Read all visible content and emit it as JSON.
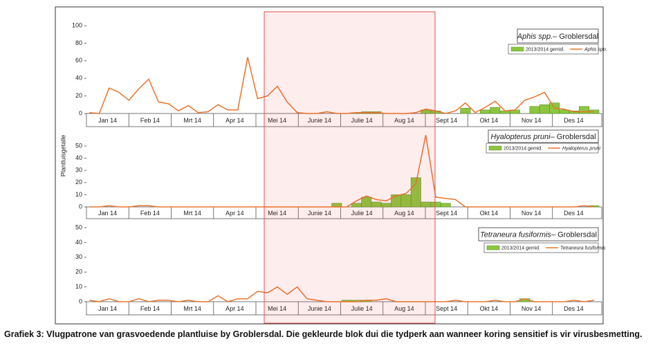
{
  "y_label": "Plantluisgetalle",
  "caption": "Grafiek 3: Vlugpatrone van grasvoedende plantluise by Groblersdal. Die gekleurde blok dui die tydperk aan wanneer koring sensitief is vir virusbesmetting.",
  "chart_data": [
    {
      "type": "combo",
      "title_species": "Aphis spp.",
      "title_place": "– Groblersdal",
      "x_labels": [
        "Jan 14",
        "Feb 14",
        "Mrt 14",
        "Apr 14",
        "Mei 14",
        "Junie 14",
        "Julie 14",
        "Aug 14",
        "Sept 14",
        "Okt 14",
        "Nov 14",
        "Des 14"
      ],
      "ylim": [
        0,
        100
      ],
      "yticks": [
        0,
        20,
        40,
        60,
        80,
        100
      ],
      "series": [
        {
          "name": "2013/2014 gemid.",
          "kind": "bar",
          "color": "#8cc63f",
          "values": [
            0,
            0,
            0,
            0,
            0,
            0,
            0,
            0,
            0,
            0,
            0,
            0,
            0,
            0,
            0,
            0,
            0,
            0,
            0,
            0,
            0,
            0,
            0,
            0,
            0,
            0,
            0,
            1,
            2,
            2,
            0,
            0,
            0,
            0,
            4,
            3,
            0,
            0,
            6,
            0,
            4,
            7,
            3,
            4,
            0,
            8,
            10,
            12,
            4,
            3,
            8,
            4
          ]
        },
        {
          "name": "Aphis spp.",
          "kind": "line",
          "color": "#e8742a",
          "values": [
            1,
            0,
            29,
            24,
            15,
            28,
            39,
            13,
            11,
            3,
            9,
            1,
            2,
            10,
            4,
            4,
            64,
            17,
            20,
            31,
            13,
            1,
            0,
            0,
            2,
            0,
            0,
            1,
            1,
            1,
            0,
            0,
            0,
            1,
            5,
            3,
            0,
            3,
            12,
            1,
            7,
            14,
            3,
            4,
            15,
            19,
            24,
            6,
            5,
            2,
            2,
            2
          ]
        }
      ]
    },
    {
      "type": "combo",
      "title_species": "Hyalopterus pruni",
      "title_place": "– Groblersdal",
      "x_labels": [
        "Jan 14",
        "Feb 14",
        "Mrt 14",
        "Apr 14",
        "Mei 14",
        "Junie 14",
        "Julie 14",
        "Aug 14",
        "Sept 14",
        "Okt 14",
        "Nov 14",
        "Des 14"
      ],
      "ylim": [
        0,
        50
      ],
      "yticks": [
        0,
        10,
        20,
        30,
        40,
        50
      ],
      "series": [
        {
          "name": "2013/2014 gemid.",
          "kind": "bar",
          "color": "#8cc63f",
          "values": [
            0,
            0,
            0,
            0,
            0,
            0,
            0,
            0,
            0,
            0,
            0,
            0,
            0,
            0,
            0,
            0,
            0,
            0,
            0,
            0,
            0,
            0,
            0,
            0,
            0,
            3,
            0,
            3,
            8,
            4,
            3,
            10,
            10,
            24,
            4,
            4,
            3,
            0,
            0,
            0,
            0,
            0,
            0,
            0,
            0,
            0,
            0,
            0,
            0,
            0,
            0,
            1
          ]
        },
        {
          "name": "Hyalopterus pruni",
          "kind": "line",
          "color": "#e8742a",
          "values": [
            0,
            0,
            1,
            0,
            0,
            1,
            1,
            0,
            0,
            0,
            0,
            0,
            0,
            0,
            0,
            0,
            0,
            0,
            0,
            0,
            0,
            0,
            0,
            0,
            0,
            0,
            0,
            5,
            9,
            6,
            5,
            9,
            11,
            19,
            59,
            8,
            7,
            6,
            0,
            0,
            0,
            0,
            0,
            0,
            0,
            0,
            0,
            0,
            0,
            0,
            1,
            0
          ]
        }
      ]
    },
    {
      "type": "combo",
      "title_species": "Tetraneura fusiformis",
      "title_place": "– Groblersdal",
      "x_labels": [
        "Jan 14",
        "Feb 14",
        "Mrt 14",
        "Apr 14",
        "Mei 14",
        "Junie 14",
        "Julie 14",
        "Aug 14",
        "Sept 14",
        "Okt 14",
        "Nov 14",
        "Des 14"
      ],
      "ylim": [
        0,
        50
      ],
      "yticks": [
        0,
        10,
        20,
        30,
        40,
        50
      ],
      "series": [
        {
          "name": "2013/2014 gemid.",
          "kind": "bar",
          "color": "#8cc63f",
          "values": [
            0,
            0,
            0,
            0,
            0,
            0,
            0,
            0,
            0,
            0,
            0,
            0,
            0,
            0,
            0,
            0,
            0,
            0,
            0,
            0,
            0,
            0,
            0,
            0,
            0,
            0,
            1,
            1,
            1,
            0,
            0,
            0,
            0,
            0,
            0,
            0,
            0,
            0,
            0,
            0,
            0,
            0,
            0,
            0,
            2,
            0,
            0,
            0,
            0,
            0,
            0,
            0
          ]
        },
        {
          "name": "Tetraneura fusiformis",
          "kind": "line",
          "color": "#e8742a",
          "values": [
            1,
            0,
            2,
            0,
            0,
            2,
            0,
            1,
            1,
            0,
            1,
            0,
            0,
            4,
            0,
            2,
            2,
            7,
            6,
            10,
            5,
            10,
            2,
            1,
            0,
            0,
            0,
            0,
            1,
            1,
            2,
            0,
            0,
            0,
            0,
            0,
            0,
            1,
            0,
            0,
            0,
            1,
            0,
            0,
            2,
            0,
            0,
            0,
            0,
            1,
            0,
            1
          ]
        }
      ]
    }
  ]
}
